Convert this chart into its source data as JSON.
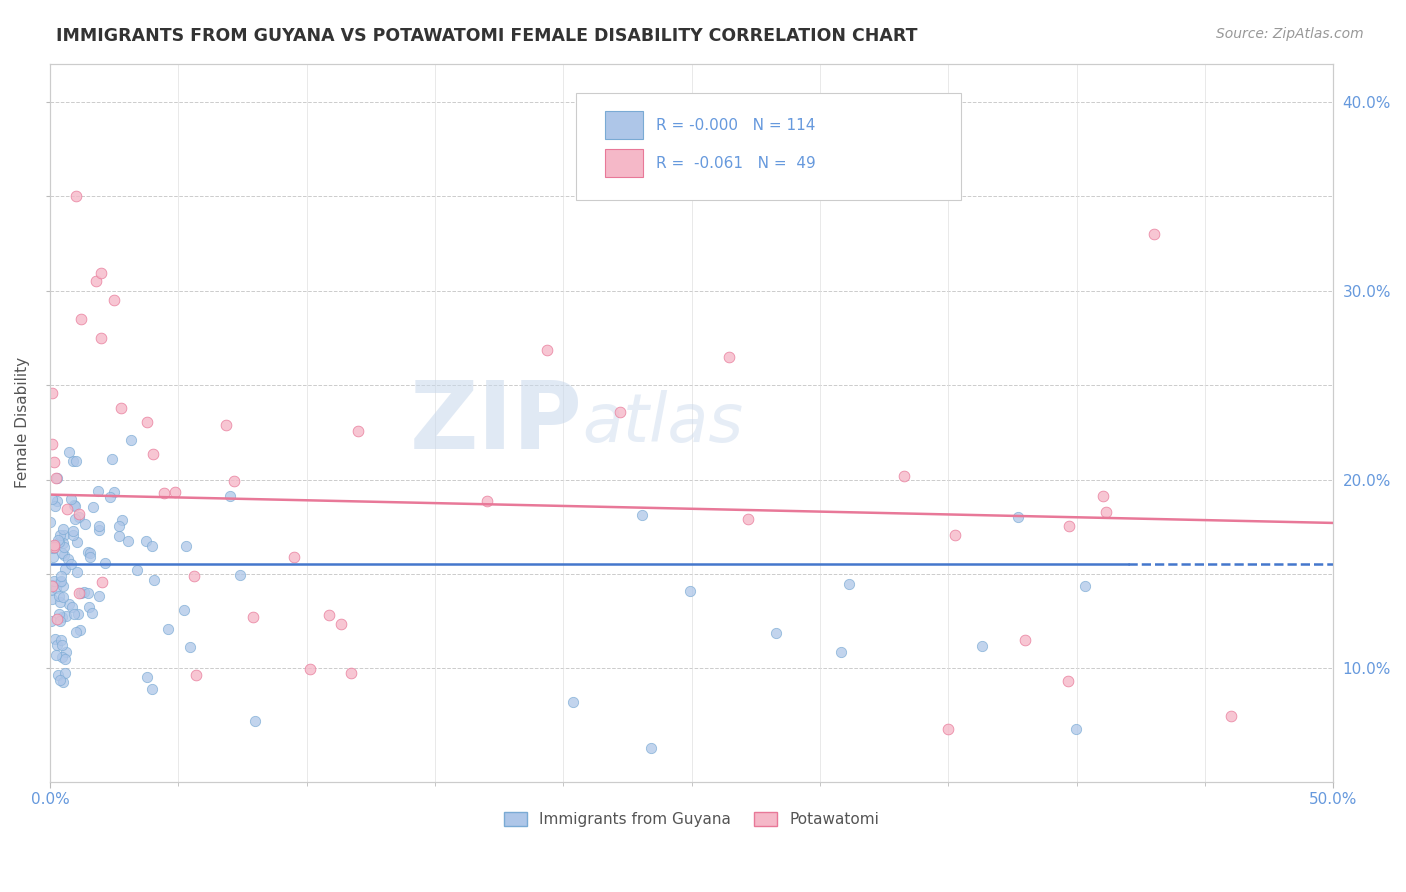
{
  "title": "IMMIGRANTS FROM GUYANA VS POTAWATOMI FEMALE DISABILITY CORRELATION CHART",
  "source_text": "Source: ZipAtlas.com",
  "ylabel": "Female Disability",
  "xlim": [
    0.0,
    0.5
  ],
  "ylim": [
    0.04,
    0.42
  ],
  "legend_r1": "R = -0.000",
  "legend_n1": "N = 114",
  "legend_r2": "R =  -0.061",
  "legend_n2": "N =  49",
  "series1_color": "#aec6e8",
  "series2_color": "#f5b8c8",
  "series1_edge": "#7aaad4",
  "series2_edge": "#e87898",
  "line1_color": "#4477cc",
  "line2_color": "#e87898",
  "watermark_zip": "ZIP",
  "watermark_atlas": "atlas",
  "background_color": "#ffffff",
  "grid_color": "#cccccc",
  "tick_label_color": "#6699dd"
}
